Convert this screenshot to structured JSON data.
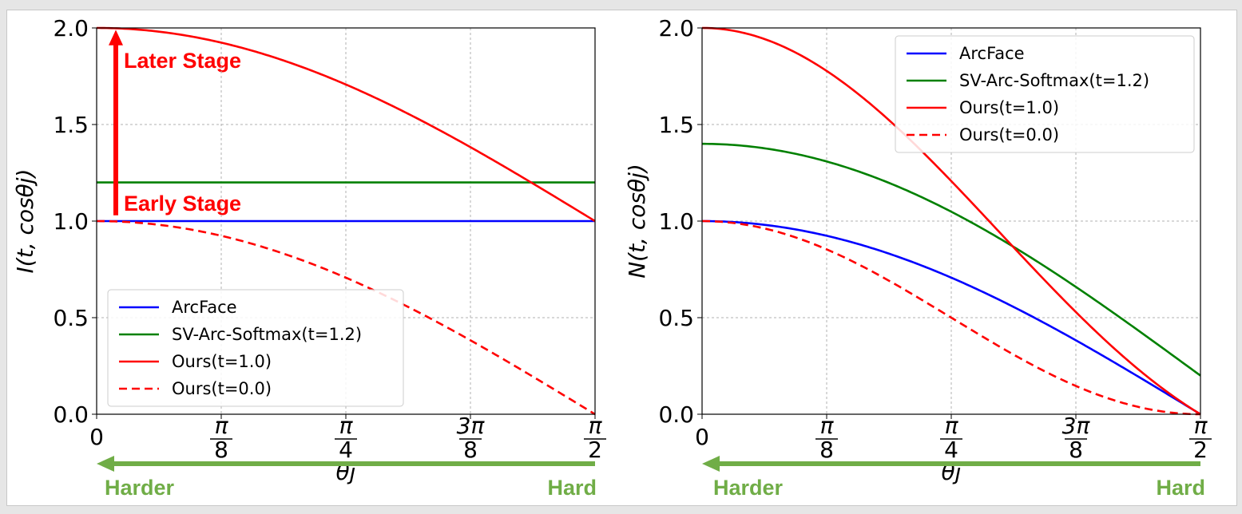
{
  "chart_data": [
    {
      "type": "line",
      "ylabel": "I(t, cosθj)",
      "xlabel": "θj",
      "xlim": [
        0,
        1.5708
      ],
      "ylim": [
        0,
        2
      ],
      "grid": true,
      "legend_position": "lower-left",
      "xticks": [
        {
          "value": 0,
          "num": "0",
          "den": ""
        },
        {
          "value": 0.3927,
          "num": "π",
          "den": "8"
        },
        {
          "value": 0.7854,
          "num": "π",
          "den": "4"
        },
        {
          "value": 1.1781,
          "num": "3π",
          "den": "8"
        },
        {
          "value": 1.5708,
          "num": "π",
          "den": "2"
        }
      ],
      "yticks": [
        "0.0",
        "0.5",
        "1.0",
        "1.5",
        "2.0"
      ],
      "series": [
        {
          "name": "ArcFace",
          "color": "#0000ff",
          "dash": false,
          "formula": "const1"
        },
        {
          "name": "SV-Arc-Softmax(t=1.2)",
          "color": "#008000",
          "dash": false,
          "formula": "const1.2"
        },
        {
          "name": "Ours(t=1.0)",
          "color": "#ff0000",
          "dash": false,
          "formula": "1+cos"
        },
        {
          "name": "Ours(t=0.0)",
          "color": "#ff0000",
          "dash": true,
          "formula": "cos"
        }
      ],
      "annotations": {
        "later": "Later Stage",
        "early": "Early Stage",
        "harder": "Harder",
        "hard": "Hard"
      }
    },
    {
      "type": "line",
      "ylabel": "N(t, cosθj)",
      "xlabel": "θj",
      "xlim": [
        0,
        1.5708
      ],
      "ylim": [
        0,
        2
      ],
      "grid": true,
      "legend_position": "upper-right",
      "xticks": [
        {
          "value": 0,
          "num": "0",
          "den": ""
        },
        {
          "value": 0.3927,
          "num": "π",
          "den": "8"
        },
        {
          "value": 0.7854,
          "num": "π",
          "den": "4"
        },
        {
          "value": 1.1781,
          "num": "3π",
          "den": "8"
        },
        {
          "value": 1.5708,
          "num": "π",
          "den": "2"
        }
      ],
      "yticks": [
        "0.0",
        "0.5",
        "1.0",
        "1.5",
        "2.0"
      ],
      "series": [
        {
          "name": "ArcFace",
          "color": "#0000ff",
          "dash": false,
          "formula": "cos"
        },
        {
          "name": "SV-Arc-Softmax(t=1.2)",
          "color": "#008000",
          "dash": false,
          "formula": "1.2cos+0.2"
        },
        {
          "name": "Ours(t=1.0)",
          "color": "#ff0000",
          "dash": false,
          "formula": "cos(1+cos)"
        },
        {
          "name": "Ours(t=0.0)",
          "color": "#ff0000",
          "dash": true,
          "formula": "cos^2"
        }
      ],
      "annotations": {
        "harder": "Harder",
        "hard": "Hard"
      }
    }
  ]
}
